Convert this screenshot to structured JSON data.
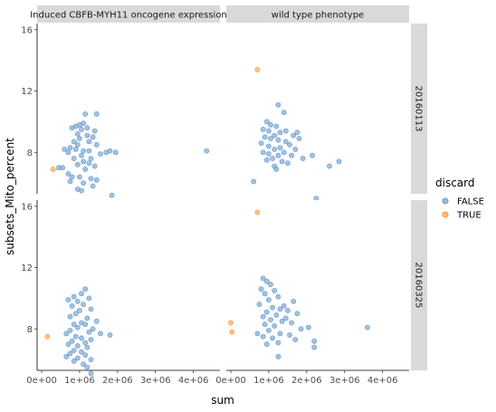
{
  "chart_data": {
    "type": "scatter",
    "xlabel": "sum",
    "ylabel": "subsets_Mito_percent",
    "x_ticks": [
      0,
      1000000,
      2000000,
      3000000,
      4000000
    ],
    "x_tick_labels": [
      "0e+00",
      "1e+06",
      "2e+06",
      "3e+06",
      "4e+06"
    ],
    "y_ticks": [
      8,
      12,
      16
    ],
    "y_tick_labels": [
      "8",
      "12",
      "16"
    ],
    "x_range": [
      -120000,
      4700000
    ],
    "y_range": [
      5.3,
      16.4
    ],
    "grid": false,
    "legend": {
      "title": "discard",
      "placement": "right",
      "entries": [
        {
          "label": "FALSE",
          "color": "#6699CC"
        },
        {
          "label": "TRUE",
          "color": "#FF9933"
        }
      ]
    },
    "col_labels": [
      "Induced CBFB-MYH11 oncogene expression",
      "wild type phenotype"
    ],
    "row_labels": [
      "20160113",
      "20160325"
    ],
    "panels": [
      {
        "row": "20160113",
        "col": "Induced CBFB-MYH11 oncogene expression",
        "points": [
          {
            "x": 1150000,
            "y": 10.5,
            "discard": "FALSE"
          },
          {
            "x": 1450000,
            "y": 10.5,
            "discard": "FALSE"
          },
          {
            "x": 1100000,
            "y": 9.9,
            "discard": "FALSE"
          },
          {
            "x": 1000000,
            "y": 9.8,
            "discard": "FALSE"
          },
          {
            "x": 900000,
            "y": 9.7,
            "discard": "FALSE"
          },
          {
            "x": 1200000,
            "y": 9.6,
            "discard": "FALSE"
          },
          {
            "x": 800000,
            "y": 9.6,
            "discard": "FALSE"
          },
          {
            "x": 1050000,
            "y": 9.5,
            "discard": "FALSE"
          },
          {
            "x": 1400000,
            "y": 9.4,
            "discard": "FALSE"
          },
          {
            "x": 950000,
            "y": 9.2,
            "discard": "FALSE"
          },
          {
            "x": 1200000,
            "y": 9.1,
            "discard": "FALSE"
          },
          {
            "x": 1350000,
            "y": 9.0,
            "discard": "FALSE"
          },
          {
            "x": 1000000,
            "y": 8.9,
            "discard": "FALSE"
          },
          {
            "x": 850000,
            "y": 8.7,
            "discard": "FALSE"
          },
          {
            "x": 1250000,
            "y": 8.7,
            "discard": "FALSE"
          },
          {
            "x": 950000,
            "y": 8.5,
            "discard": "FALSE"
          },
          {
            "x": 1450000,
            "y": 8.5,
            "discard": "FALSE"
          },
          {
            "x": 750000,
            "y": 8.3,
            "discard": "FALSE"
          },
          {
            "x": 600000,
            "y": 8.2,
            "discard": "FALSE"
          },
          {
            "x": 900000,
            "y": 8.2,
            "discard": "FALSE"
          },
          {
            "x": 1100000,
            "y": 8.1,
            "discard": "FALSE"
          },
          {
            "x": 1250000,
            "y": 8.1,
            "discard": "FALSE"
          },
          {
            "x": 700000,
            "y": 8.0,
            "discard": "FALSE"
          },
          {
            "x": 1700000,
            "y": 8.0,
            "discard": "FALSE"
          },
          {
            "x": 1550000,
            "y": 7.9,
            "discard": "FALSE"
          },
          {
            "x": 1950000,
            "y": 8.0,
            "discard": "FALSE"
          },
          {
            "x": 1800000,
            "y": 8.1,
            "discard": "FALSE"
          },
          {
            "x": 4350000,
            "y": 8.1,
            "discard": "FALSE"
          },
          {
            "x": 1050000,
            "y": 7.8,
            "discard": "FALSE"
          },
          {
            "x": 1300000,
            "y": 7.6,
            "discard": "FALSE"
          },
          {
            "x": 850000,
            "y": 7.6,
            "discard": "FALSE"
          },
          {
            "x": 1100000,
            "y": 7.4,
            "discard": "FALSE"
          },
          {
            "x": 1250000,
            "y": 7.3,
            "discard": "FALSE"
          },
          {
            "x": 950000,
            "y": 7.2,
            "discard": "FALSE"
          },
          {
            "x": 450000,
            "y": 7.0,
            "discard": "FALSE"
          },
          {
            "x": 550000,
            "y": 7.0,
            "discard": "FALSE"
          },
          {
            "x": 1400000,
            "y": 7.1,
            "discard": "FALSE"
          },
          {
            "x": 1150000,
            "y": 6.9,
            "discard": "FALSE"
          },
          {
            "x": 700000,
            "y": 6.6,
            "discard": "FALSE"
          },
          {
            "x": 800000,
            "y": 6.4,
            "discard": "FALSE"
          },
          {
            "x": 1000000,
            "y": 6.4,
            "discard": "FALSE"
          },
          {
            "x": 1300000,
            "y": 6.3,
            "discard": "FALSE"
          },
          {
            "x": 1450000,
            "y": 6.2,
            "discard": "FALSE"
          },
          {
            "x": 750000,
            "y": 6.1,
            "discard": "FALSE"
          },
          {
            "x": 1100000,
            "y": 6.0,
            "discard": "FALSE"
          },
          {
            "x": 1350000,
            "y": 5.8,
            "discard": "FALSE"
          },
          {
            "x": 950000,
            "y": 5.6,
            "discard": "FALSE"
          },
          {
            "x": 1050000,
            "y": 5.5,
            "discard": "FALSE"
          },
          {
            "x": 1850000,
            "y": 5.2,
            "discard": "FALSE"
          },
          {
            "x": 300000,
            "y": 6.9,
            "discard": "TRUE"
          }
        ]
      },
      {
        "row": "20160113",
        "col": "wild type phenotype",
        "points": [
          {
            "x": 1250000,
            "y": 11.1,
            "discard": "FALSE"
          },
          {
            "x": 1400000,
            "y": 10.6,
            "discard": "FALSE"
          },
          {
            "x": 950000,
            "y": 10.0,
            "discard": "FALSE"
          },
          {
            "x": 1050000,
            "y": 9.8,
            "discard": "FALSE"
          },
          {
            "x": 1200000,
            "y": 9.7,
            "discard": "FALSE"
          },
          {
            "x": 850000,
            "y": 9.5,
            "discard": "FALSE"
          },
          {
            "x": 1000000,
            "y": 9.4,
            "discard": "FALSE"
          },
          {
            "x": 1300000,
            "y": 9.3,
            "discard": "FALSE"
          },
          {
            "x": 1450000,
            "y": 9.4,
            "discard": "FALSE"
          },
          {
            "x": 1750000,
            "y": 9.3,
            "discard": "FALSE"
          },
          {
            "x": 1650000,
            "y": 9.1,
            "discard": "FALSE"
          },
          {
            "x": 1150000,
            "y": 9.1,
            "discard": "FALSE"
          },
          {
            "x": 900000,
            "y": 9.0,
            "discard": "FALSE"
          },
          {
            "x": 1050000,
            "y": 8.9,
            "discard": "FALSE"
          },
          {
            "x": 1800000,
            "y": 8.9,
            "discard": "FALSE"
          },
          {
            "x": 1250000,
            "y": 8.8,
            "discard": "FALSE"
          },
          {
            "x": 1450000,
            "y": 8.7,
            "discard": "FALSE"
          },
          {
            "x": 800000,
            "y": 8.6,
            "discard": "FALSE"
          },
          {
            "x": 1550000,
            "y": 8.5,
            "discard": "FALSE"
          },
          {
            "x": 1000000,
            "y": 8.4,
            "discard": "FALSE"
          },
          {
            "x": 1300000,
            "y": 8.3,
            "discard": "FALSE"
          },
          {
            "x": 1150000,
            "y": 8.2,
            "discard": "FALSE"
          },
          {
            "x": 1700000,
            "y": 8.2,
            "discard": "FALSE"
          },
          {
            "x": 1400000,
            "y": 8.0,
            "discard": "FALSE"
          },
          {
            "x": 850000,
            "y": 8.0,
            "discard": "FALSE"
          },
          {
            "x": 1000000,
            "y": 7.9,
            "discard": "FALSE"
          },
          {
            "x": 1250000,
            "y": 7.8,
            "discard": "FALSE"
          },
          {
            "x": 1600000,
            "y": 7.8,
            "discard": "FALSE"
          },
          {
            "x": 2150000,
            "y": 7.8,
            "discard": "FALSE"
          },
          {
            "x": 1100000,
            "y": 7.6,
            "discard": "FALSE"
          },
          {
            "x": 1900000,
            "y": 7.6,
            "discard": "FALSE"
          },
          {
            "x": 950000,
            "y": 7.5,
            "discard": "FALSE"
          },
          {
            "x": 1350000,
            "y": 7.4,
            "discard": "FALSE"
          },
          {
            "x": 1500000,
            "y": 7.3,
            "discard": "FALSE"
          },
          {
            "x": 2850000,
            "y": 7.4,
            "discard": "FALSE"
          },
          {
            "x": 2600000,
            "y": 7.1,
            "discard": "FALSE"
          },
          {
            "x": 1150000,
            "y": 7.1,
            "discard": "FALSE"
          },
          {
            "x": 1200000,
            "y": 6.9,
            "discard": "FALSE"
          },
          {
            "x": 600000,
            "y": 6.1,
            "discard": "FALSE"
          },
          {
            "x": 2250000,
            "y": 5.0,
            "discard": "FALSE"
          },
          {
            "x": 700000,
            "y": 13.4,
            "discard": "TRUE"
          }
        ]
      },
      {
        "row": "20160325",
        "col": "Induced CBFB-MYH11 oncogene expression",
        "points": [
          {
            "x": 1150000,
            "y": 10.6,
            "discard": "FALSE"
          },
          {
            "x": 1050000,
            "y": 10.3,
            "discard": "FALSE"
          },
          {
            "x": 850000,
            "y": 10.1,
            "discard": "FALSE"
          },
          {
            "x": 1250000,
            "y": 10.0,
            "discard": "FALSE"
          },
          {
            "x": 700000,
            "y": 9.9,
            "discard": "FALSE"
          },
          {
            "x": 950000,
            "y": 9.8,
            "discard": "FALSE"
          },
          {
            "x": 1100000,
            "y": 9.6,
            "discard": "FALSE"
          },
          {
            "x": 800000,
            "y": 9.5,
            "discard": "FALSE"
          },
          {
            "x": 1300000,
            "y": 9.3,
            "discard": "FALSE"
          },
          {
            "x": 1000000,
            "y": 9.2,
            "discard": "FALSE"
          },
          {
            "x": 900000,
            "y": 9.0,
            "discard": "FALSE"
          },
          {
            "x": 750000,
            "y": 8.8,
            "discard": "FALSE"
          },
          {
            "x": 1200000,
            "y": 8.7,
            "discard": "FALSE"
          },
          {
            "x": 1450000,
            "y": 8.5,
            "discard": "FALSE"
          },
          {
            "x": 1050000,
            "y": 8.4,
            "discard": "FALSE"
          },
          {
            "x": 850000,
            "y": 8.3,
            "discard": "FALSE"
          },
          {
            "x": 1150000,
            "y": 8.3,
            "discard": "FALSE"
          },
          {
            "x": 950000,
            "y": 8.1,
            "discard": "FALSE"
          },
          {
            "x": 1350000,
            "y": 8.0,
            "discard": "FALSE"
          },
          {
            "x": 750000,
            "y": 7.9,
            "discard": "FALSE"
          },
          {
            "x": 1250000,
            "y": 7.8,
            "discard": "FALSE"
          },
          {
            "x": 650000,
            "y": 7.7,
            "discard": "FALSE"
          },
          {
            "x": 1550000,
            "y": 7.7,
            "discard": "FALSE"
          },
          {
            "x": 1800000,
            "y": 7.6,
            "discard": "FALSE"
          },
          {
            "x": 900000,
            "y": 7.5,
            "discard": "FALSE"
          },
          {
            "x": 1050000,
            "y": 7.4,
            "discard": "FALSE"
          },
          {
            "x": 1300000,
            "y": 7.3,
            "discard": "FALSE"
          },
          {
            "x": 800000,
            "y": 7.2,
            "discard": "FALSE"
          },
          {
            "x": 1150000,
            "y": 7.1,
            "discard": "FALSE"
          },
          {
            "x": 700000,
            "y": 7.0,
            "discard": "FALSE"
          },
          {
            "x": 950000,
            "y": 6.9,
            "discard": "FALSE"
          },
          {
            "x": 1200000,
            "y": 6.8,
            "discard": "FALSE"
          },
          {
            "x": 850000,
            "y": 6.6,
            "discard": "FALSE"
          },
          {
            "x": 1050000,
            "y": 6.5,
            "discard": "FALSE"
          },
          {
            "x": 750000,
            "y": 6.4,
            "discard": "FALSE"
          },
          {
            "x": 1150000,
            "y": 6.3,
            "discard": "FALSE"
          },
          {
            "x": 650000,
            "y": 6.2,
            "discard": "FALSE"
          },
          {
            "x": 950000,
            "y": 6.1,
            "discard": "FALSE"
          },
          {
            "x": 1300000,
            "y": 6.0,
            "discard": "FALSE"
          },
          {
            "x": 850000,
            "y": 5.9,
            "discard": "FALSE"
          },
          {
            "x": 1100000,
            "y": 5.7,
            "discard": "FALSE"
          },
          {
            "x": 1200000,
            "y": 5.5,
            "discard": "FALSE"
          },
          {
            "x": 1300000,
            "y": 5.1,
            "discard": "FALSE"
          },
          {
            "x": 150000,
            "y": 7.5,
            "discard": "TRUE"
          }
        ]
      },
      {
        "row": "20160325",
        "col": "wild type phenotype",
        "points": [
          {
            "x": 850000,
            "y": 11.3,
            "discard": "FALSE"
          },
          {
            "x": 950000,
            "y": 11.1,
            "discard": "FALSE"
          },
          {
            "x": 1050000,
            "y": 10.9,
            "discard": "FALSE"
          },
          {
            "x": 800000,
            "y": 10.6,
            "discard": "FALSE"
          },
          {
            "x": 1150000,
            "y": 10.5,
            "discard": "FALSE"
          },
          {
            "x": 900000,
            "y": 10.3,
            "discard": "FALSE"
          },
          {
            "x": 1250000,
            "y": 10.1,
            "discard": "FALSE"
          },
          {
            "x": 1000000,
            "y": 9.9,
            "discard": "FALSE"
          },
          {
            "x": 1650000,
            "y": 9.8,
            "discard": "FALSE"
          },
          {
            "x": 750000,
            "y": 9.6,
            "discard": "FALSE"
          },
          {
            "x": 1400000,
            "y": 9.5,
            "discard": "FALSE"
          },
          {
            "x": 1100000,
            "y": 9.4,
            "discard": "FALSE"
          },
          {
            "x": 1300000,
            "y": 9.3,
            "discard": "FALSE"
          },
          {
            "x": 1500000,
            "y": 9.2,
            "discard": "FALSE"
          },
          {
            "x": 950000,
            "y": 9.1,
            "discard": "FALSE"
          },
          {
            "x": 1750000,
            "y": 9.0,
            "discard": "FALSE"
          },
          {
            "x": 1200000,
            "y": 8.9,
            "discard": "FALSE"
          },
          {
            "x": 850000,
            "y": 8.8,
            "discard": "FALSE"
          },
          {
            "x": 1450000,
            "y": 8.7,
            "discard": "FALSE"
          },
          {
            "x": 1050000,
            "y": 8.6,
            "discard": "FALSE"
          },
          {
            "x": 1350000,
            "y": 8.5,
            "discard": "FALSE"
          },
          {
            "x": 1600000,
            "y": 8.4,
            "discard": "FALSE"
          },
          {
            "x": 900000,
            "y": 8.3,
            "discard": "FALSE"
          },
          {
            "x": 1150000,
            "y": 8.2,
            "discard": "FALSE"
          },
          {
            "x": 2050000,
            "y": 8.1,
            "discard": "FALSE"
          },
          {
            "x": 3600000,
            "y": 8.1,
            "discard": "FALSE"
          },
          {
            "x": 1850000,
            "y": 8.0,
            "discard": "FALSE"
          },
          {
            "x": 1000000,
            "y": 7.9,
            "discard": "FALSE"
          },
          {
            "x": 700000,
            "y": 7.7,
            "discard": "FALSE"
          },
          {
            "x": 1300000,
            "y": 7.7,
            "discard": "FALSE"
          },
          {
            "x": 1550000,
            "y": 7.6,
            "discard": "FALSE"
          },
          {
            "x": 850000,
            "y": 7.5,
            "discard": "FALSE"
          },
          {
            "x": 1100000,
            "y": 7.4,
            "discard": "FALSE"
          },
          {
            "x": 1700000,
            "y": 7.3,
            "discard": "FALSE"
          },
          {
            "x": 2200000,
            "y": 7.2,
            "discard": "FALSE"
          },
          {
            "x": 1250000,
            "y": 7.1,
            "discard": "FALSE"
          },
          {
            "x": 950000,
            "y": 7.0,
            "discard": "FALSE"
          },
          {
            "x": 2200000,
            "y": 6.8,
            "discard": "FALSE"
          },
          {
            "x": 1250000,
            "y": 6.2,
            "discard": "FALSE"
          },
          {
            "x": 700000,
            "y": 15.6,
            "discard": "TRUE"
          },
          {
            "x": 0,
            "y": 8.4,
            "discard": "TRUE"
          },
          {
            "x": 30000,
            "y": 7.8,
            "discard": "TRUE"
          }
        ]
      }
    ]
  }
}
